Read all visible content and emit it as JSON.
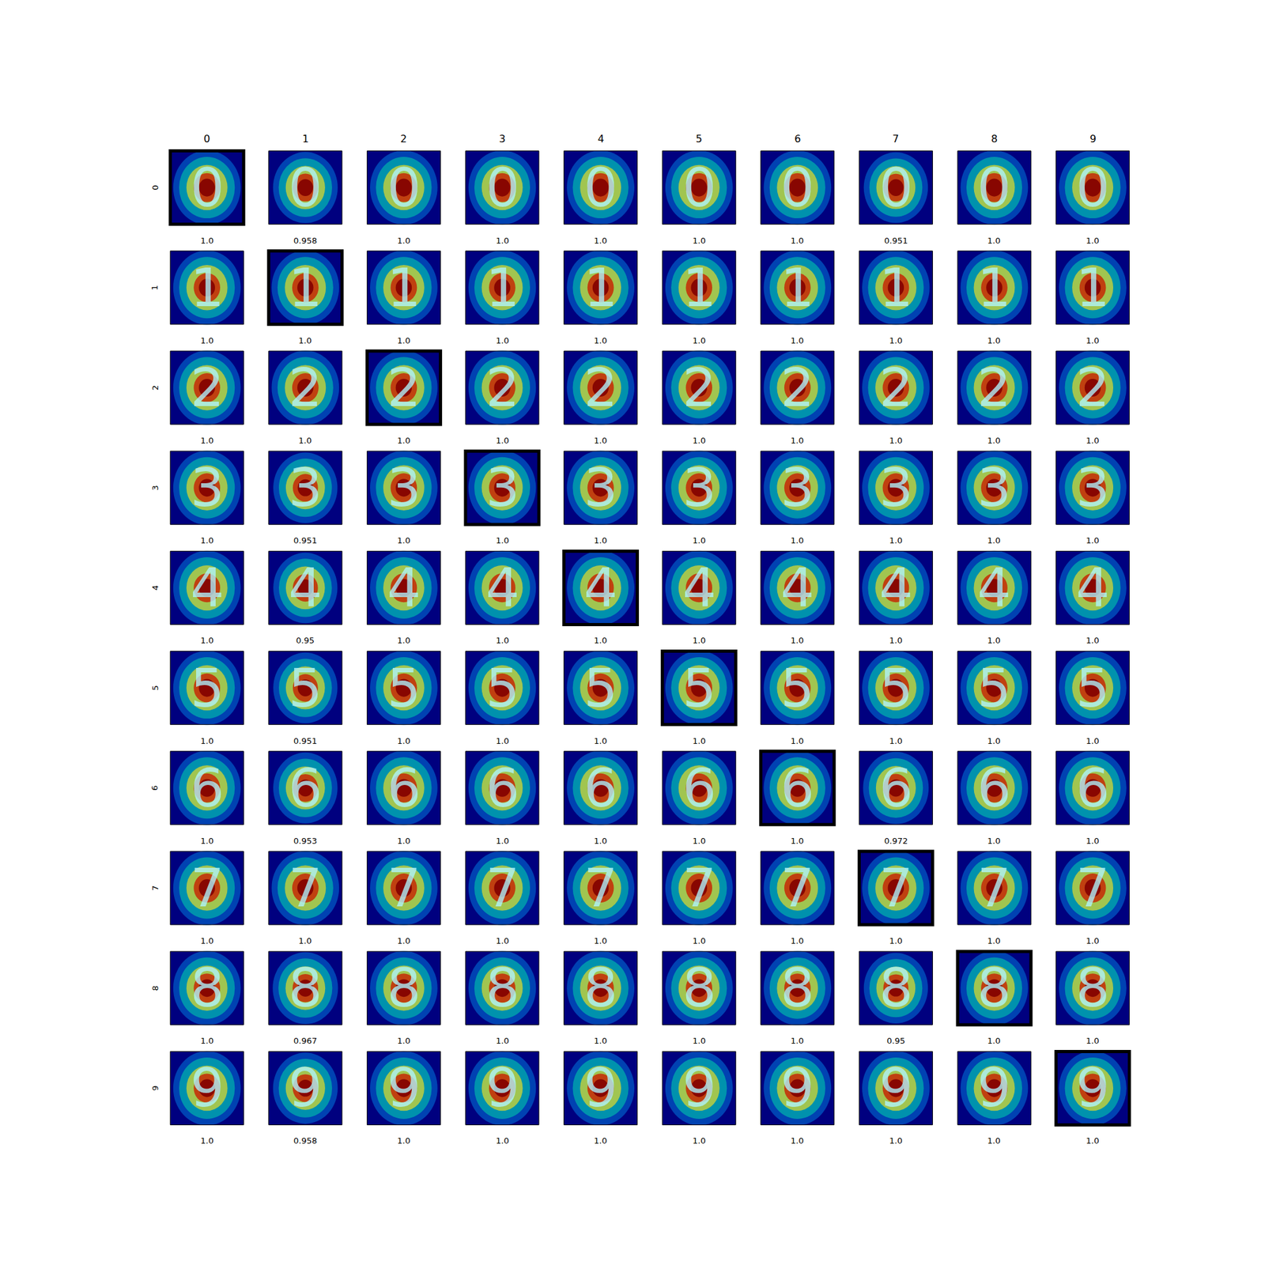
{
  "chart_data": {
    "type": "image_grid",
    "columns": [
      "0",
      "1",
      "2",
      "3",
      "4",
      "5",
      "6",
      "7",
      "8",
      "9"
    ],
    "rows": [
      "0",
      "1",
      "2",
      "3",
      "4",
      "5",
      "6",
      "7",
      "8",
      "9"
    ],
    "values": [
      [
        1.0,
        0.958,
        1.0,
        1.0,
        1.0,
        1.0,
        1.0,
        0.951,
        1.0,
        1.0
      ],
      [
        1.0,
        1.0,
        1.0,
        1.0,
        1.0,
        1.0,
        1.0,
        1.0,
        1.0,
        1.0
      ],
      [
        1.0,
        1.0,
        1.0,
        1.0,
        1.0,
        1.0,
        1.0,
        1.0,
        1.0,
        1.0
      ],
      [
        1.0,
        0.951,
        1.0,
        1.0,
        1.0,
        1.0,
        1.0,
        1.0,
        1.0,
        1.0
      ],
      [
        1.0,
        0.95,
        1.0,
        1.0,
        1.0,
        1.0,
        1.0,
        1.0,
        1.0,
        1.0
      ],
      [
        1.0,
        0.951,
        1.0,
        1.0,
        1.0,
        1.0,
        1.0,
        1.0,
        1.0,
        1.0
      ],
      [
        1.0,
        0.953,
        1.0,
        1.0,
        1.0,
        1.0,
        1.0,
        0.972,
        1.0,
        1.0
      ],
      [
        1.0,
        1.0,
        1.0,
        1.0,
        1.0,
        1.0,
        1.0,
        1.0,
        1.0,
        1.0
      ],
      [
        1.0,
        0.967,
        1.0,
        1.0,
        1.0,
        1.0,
        1.0,
        0.95,
        1.0,
        1.0
      ],
      [
        1.0,
        0.958,
        1.0,
        1.0,
        1.0,
        1.0,
        1.0,
        1.0,
        1.0,
        1.0
      ]
    ],
    "value_labels": [
      [
        "1.0",
        "0.958",
        "1.0",
        "1.0",
        "1.0",
        "1.0",
        "1.0",
        "0.951",
        "1.0",
        "1.0"
      ],
      [
        "1.0",
        "1.0",
        "1.0",
        "1.0",
        "1.0",
        "1.0",
        "1.0",
        "1.0",
        "1.0",
        "1.0"
      ],
      [
        "1.0",
        "1.0",
        "1.0",
        "1.0",
        "1.0",
        "1.0",
        "1.0",
        "1.0",
        "1.0",
        "1.0"
      ],
      [
        "1.0",
        "0.951",
        "1.0",
        "1.0",
        "1.0",
        "1.0",
        "1.0",
        "1.0",
        "1.0",
        "1.0"
      ],
      [
        "1.0",
        "0.95",
        "1.0",
        "1.0",
        "1.0",
        "1.0",
        "1.0",
        "1.0",
        "1.0",
        "1.0"
      ],
      [
        "1.0",
        "0.951",
        "1.0",
        "1.0",
        "1.0",
        "1.0",
        "1.0",
        "1.0",
        "1.0",
        "1.0"
      ],
      [
        "1.0",
        "0.953",
        "1.0",
        "1.0",
        "1.0",
        "1.0",
        "1.0",
        "0.972",
        "1.0",
        "1.0"
      ],
      [
        "1.0",
        "1.0",
        "1.0",
        "1.0",
        "1.0",
        "1.0",
        "1.0",
        "1.0",
        "1.0",
        "1.0"
      ],
      [
        "1.0",
        "0.967",
        "1.0",
        "1.0",
        "1.0",
        "1.0",
        "1.0",
        "0.95",
        "1.0",
        "1.0"
      ],
      [
        "1.0",
        "0.958",
        "1.0",
        "1.0",
        "1.0",
        "1.0",
        "1.0",
        "1.0",
        "1.0",
        "1.0"
      ]
    ],
    "highlighted": [
      [
        0,
        0
      ],
      [
        1,
        1
      ],
      [
        2,
        2
      ],
      [
        3,
        3
      ],
      [
        4,
        4
      ],
      [
        5,
        5
      ],
      [
        6,
        6
      ],
      [
        7,
        7
      ],
      [
        8,
        8
      ],
      [
        9,
        9
      ]
    ],
    "tick_labels": false
  }
}
